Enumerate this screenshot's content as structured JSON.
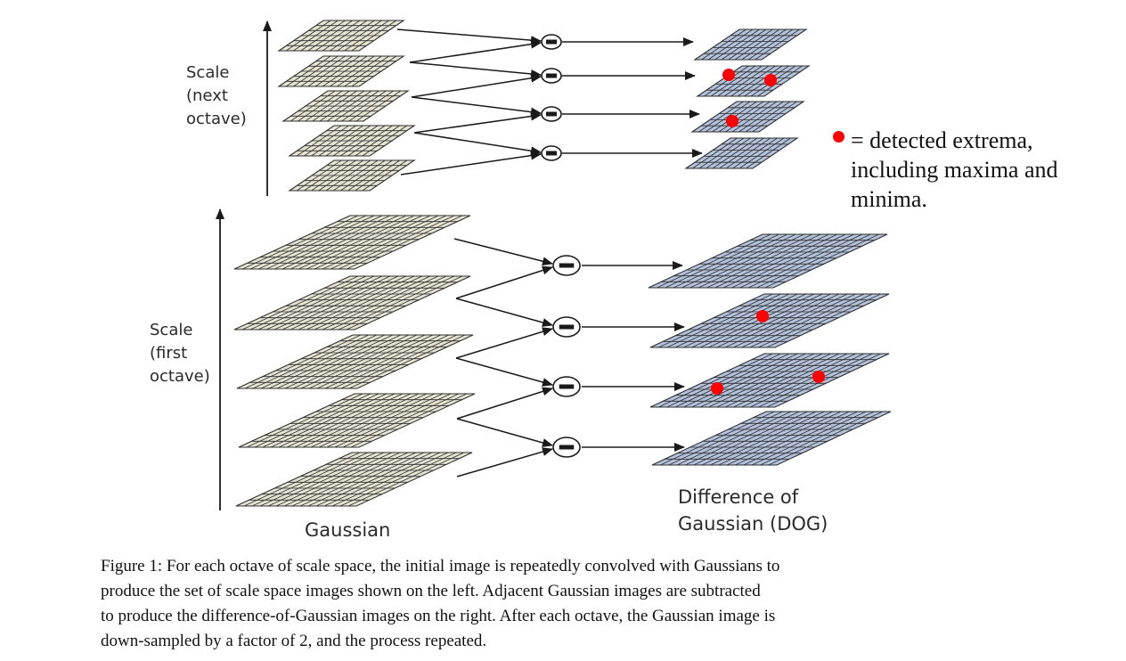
{
  "labels": {
    "next_octave": [
      "Scale",
      "(next",
      "octave)"
    ],
    "first_octave": [
      "Scale",
      "(first",
      "octave)"
    ],
    "gaussian": "Gaussian",
    "dog": [
      "Difference of",
      "Gaussian (DOG)"
    ]
  },
  "legend": {
    "lines": [
      "= detected extrema,",
      "including maxima and",
      "minima."
    ],
    "dot_color": "#ff0000"
  },
  "caption": [
    "Figure 1: For each octave of scale space, the initial image is repeatedly convolved with Gaussians to",
    "produce the set of scale space images shown on the left.  Adjacent Gaussian images are subtracted",
    "to produce the difference-of-Gaussian images on the right. After each octave, the Gaussian image is",
    "down-sampled by a factor of 2, and the process repeated."
  ],
  "colors": {
    "gaussian_fill": "#e6e4d2",
    "dog_fill": "#b4c3dc",
    "grid_line": "#2e2e2e",
    "extrema": "#ff0000"
  },
  "icons": {
    "subtract": "circle-minus-icon",
    "extremum": "red-dot-icon"
  }
}
